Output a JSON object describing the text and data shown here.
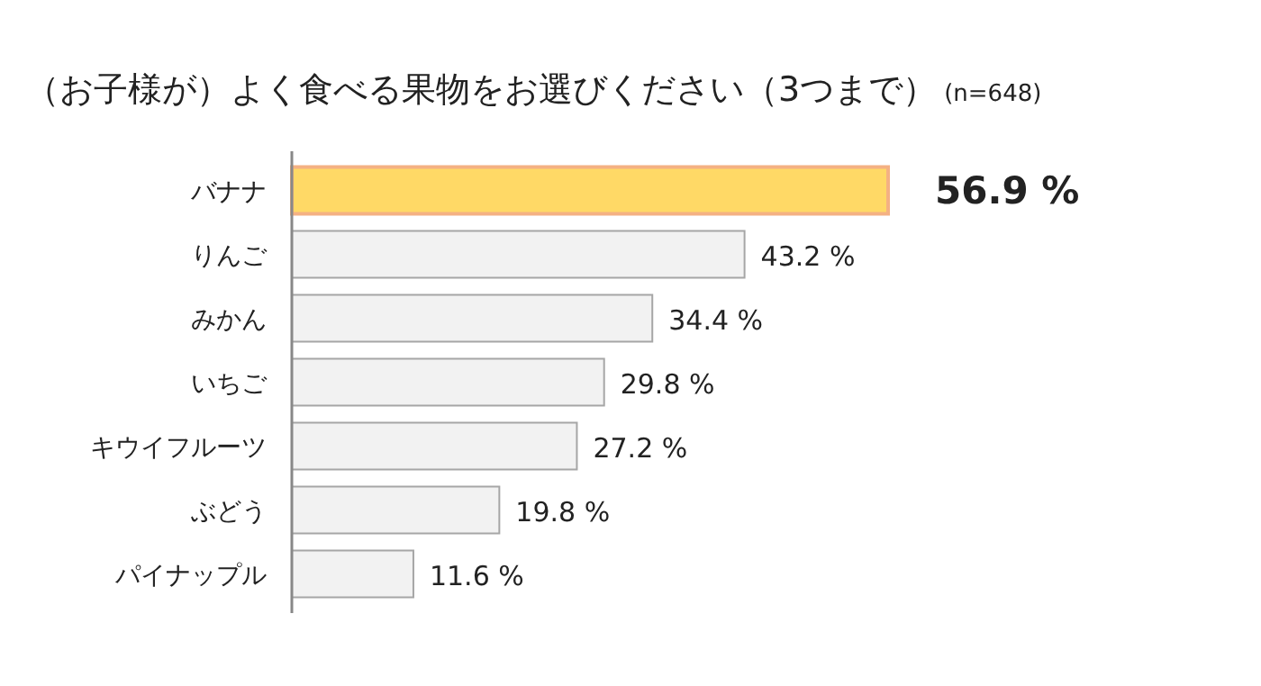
{
  "chart_data": {
    "type": "bar",
    "orientation": "horizontal",
    "title": "（お子様が）よく食べる果物をお選びください（3つまで）",
    "subtitle": "(n=648)",
    "categories": [
      "バナナ",
      "りんご",
      "みかん",
      "いちご",
      "キウイフルーツ",
      "ぶどう",
      "パイナップル"
    ],
    "values": [
      56.9,
      43.2,
      34.4,
      29.8,
      27.2,
      19.8,
      11.6
    ],
    "value_labels": [
      "56.9 %",
      "43.2 %",
      "34.4 %",
      "29.8 %",
      "27.2 %",
      "19.8 %",
      "11.6 %"
    ],
    "colors": [
      "#ffd966",
      "#f2f2f2",
      "#f2f2f2",
      "#f2f2f2",
      "#f2f2f2",
      "#f2f2f2",
      "#f2f2f2"
    ]
  }
}
